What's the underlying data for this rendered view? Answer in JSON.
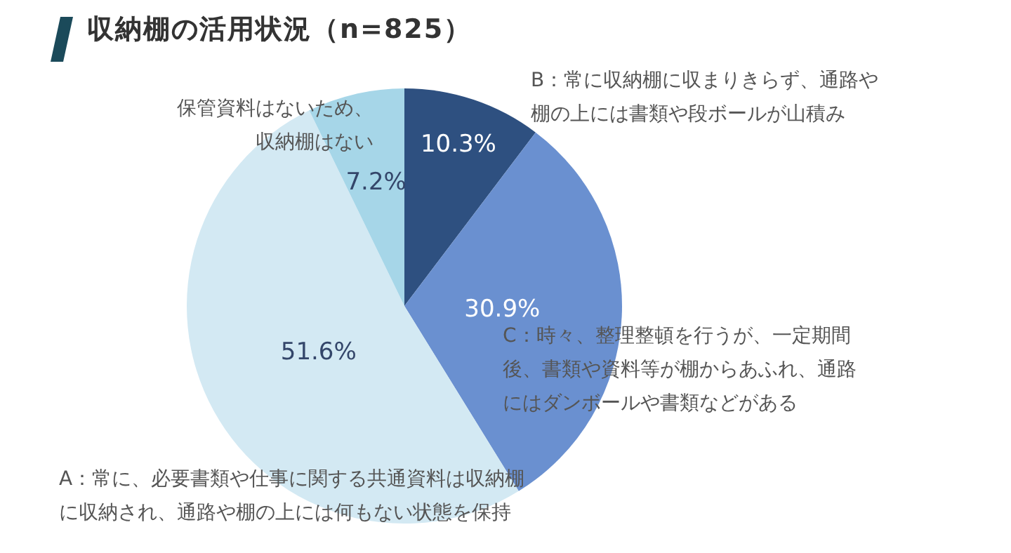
{
  "chart_data": {
    "type": "pie",
    "title": "収納棚の活用状況（n=825）",
    "categories": [
      "B：常に収納棚に収まりきらず、通路や棚の上には書類や段ボールが山積み",
      "C：時々、整理整頓を行うが、一定期間後、書類や資料等が棚からあふれ、通路にはダンボールや書類などがある",
      "A：常に、必要書類や仕事に関する共通資料は収納棚に収納され、通路や棚の上には何もない状態を保持",
      "保管資料はないため、収納棚はない"
    ],
    "values": [
      10.3,
      30.9,
      51.6,
      7.2
    ],
    "colors": [
      "#2e5080",
      "#6a90d0",
      "#d3e9f3",
      "#a6d6e8"
    ],
    "value_labels": [
      "10.3%",
      "30.9%",
      "51.6%",
      "7.2%"
    ],
    "legend": false
  }
}
